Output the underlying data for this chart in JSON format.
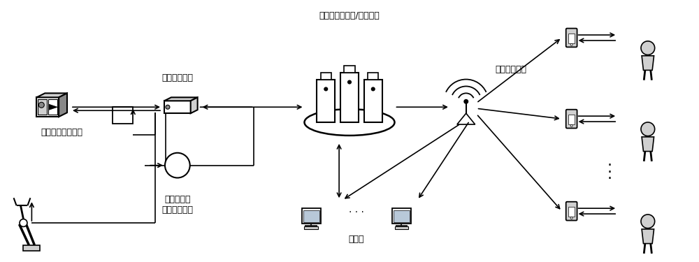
{
  "bg_color": "#ffffff",
  "fig_width": 10.0,
  "fig_height": 3.75,
  "labels": {
    "network_switch": "网络交换设备",
    "cloud_platform": "智能检测云平台/数据中心",
    "wireless_signal": "无线网络信号",
    "conveyor": "待检测产品传送带",
    "stereo_screen": "立体式筛选\n候选区传送带",
    "control_end": "控制端"
  },
  "text_color": "#000000",
  "line_color": "#000000",
  "gray_light": "#d0d0d0",
  "gray_mid": "#888888",
  "gray_dark": "#444444"
}
